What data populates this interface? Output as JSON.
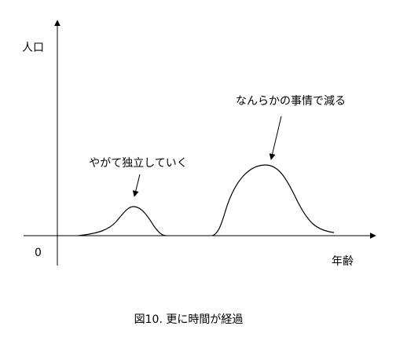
{
  "axes": {
    "y_label": "人口",
    "origin": "0",
    "x_label": "年齢"
  },
  "annotations": [
    "やがて独立していく",
    "なんらかの事情で減る"
  ],
  "caption": "図10. 更に時間が経過"
}
